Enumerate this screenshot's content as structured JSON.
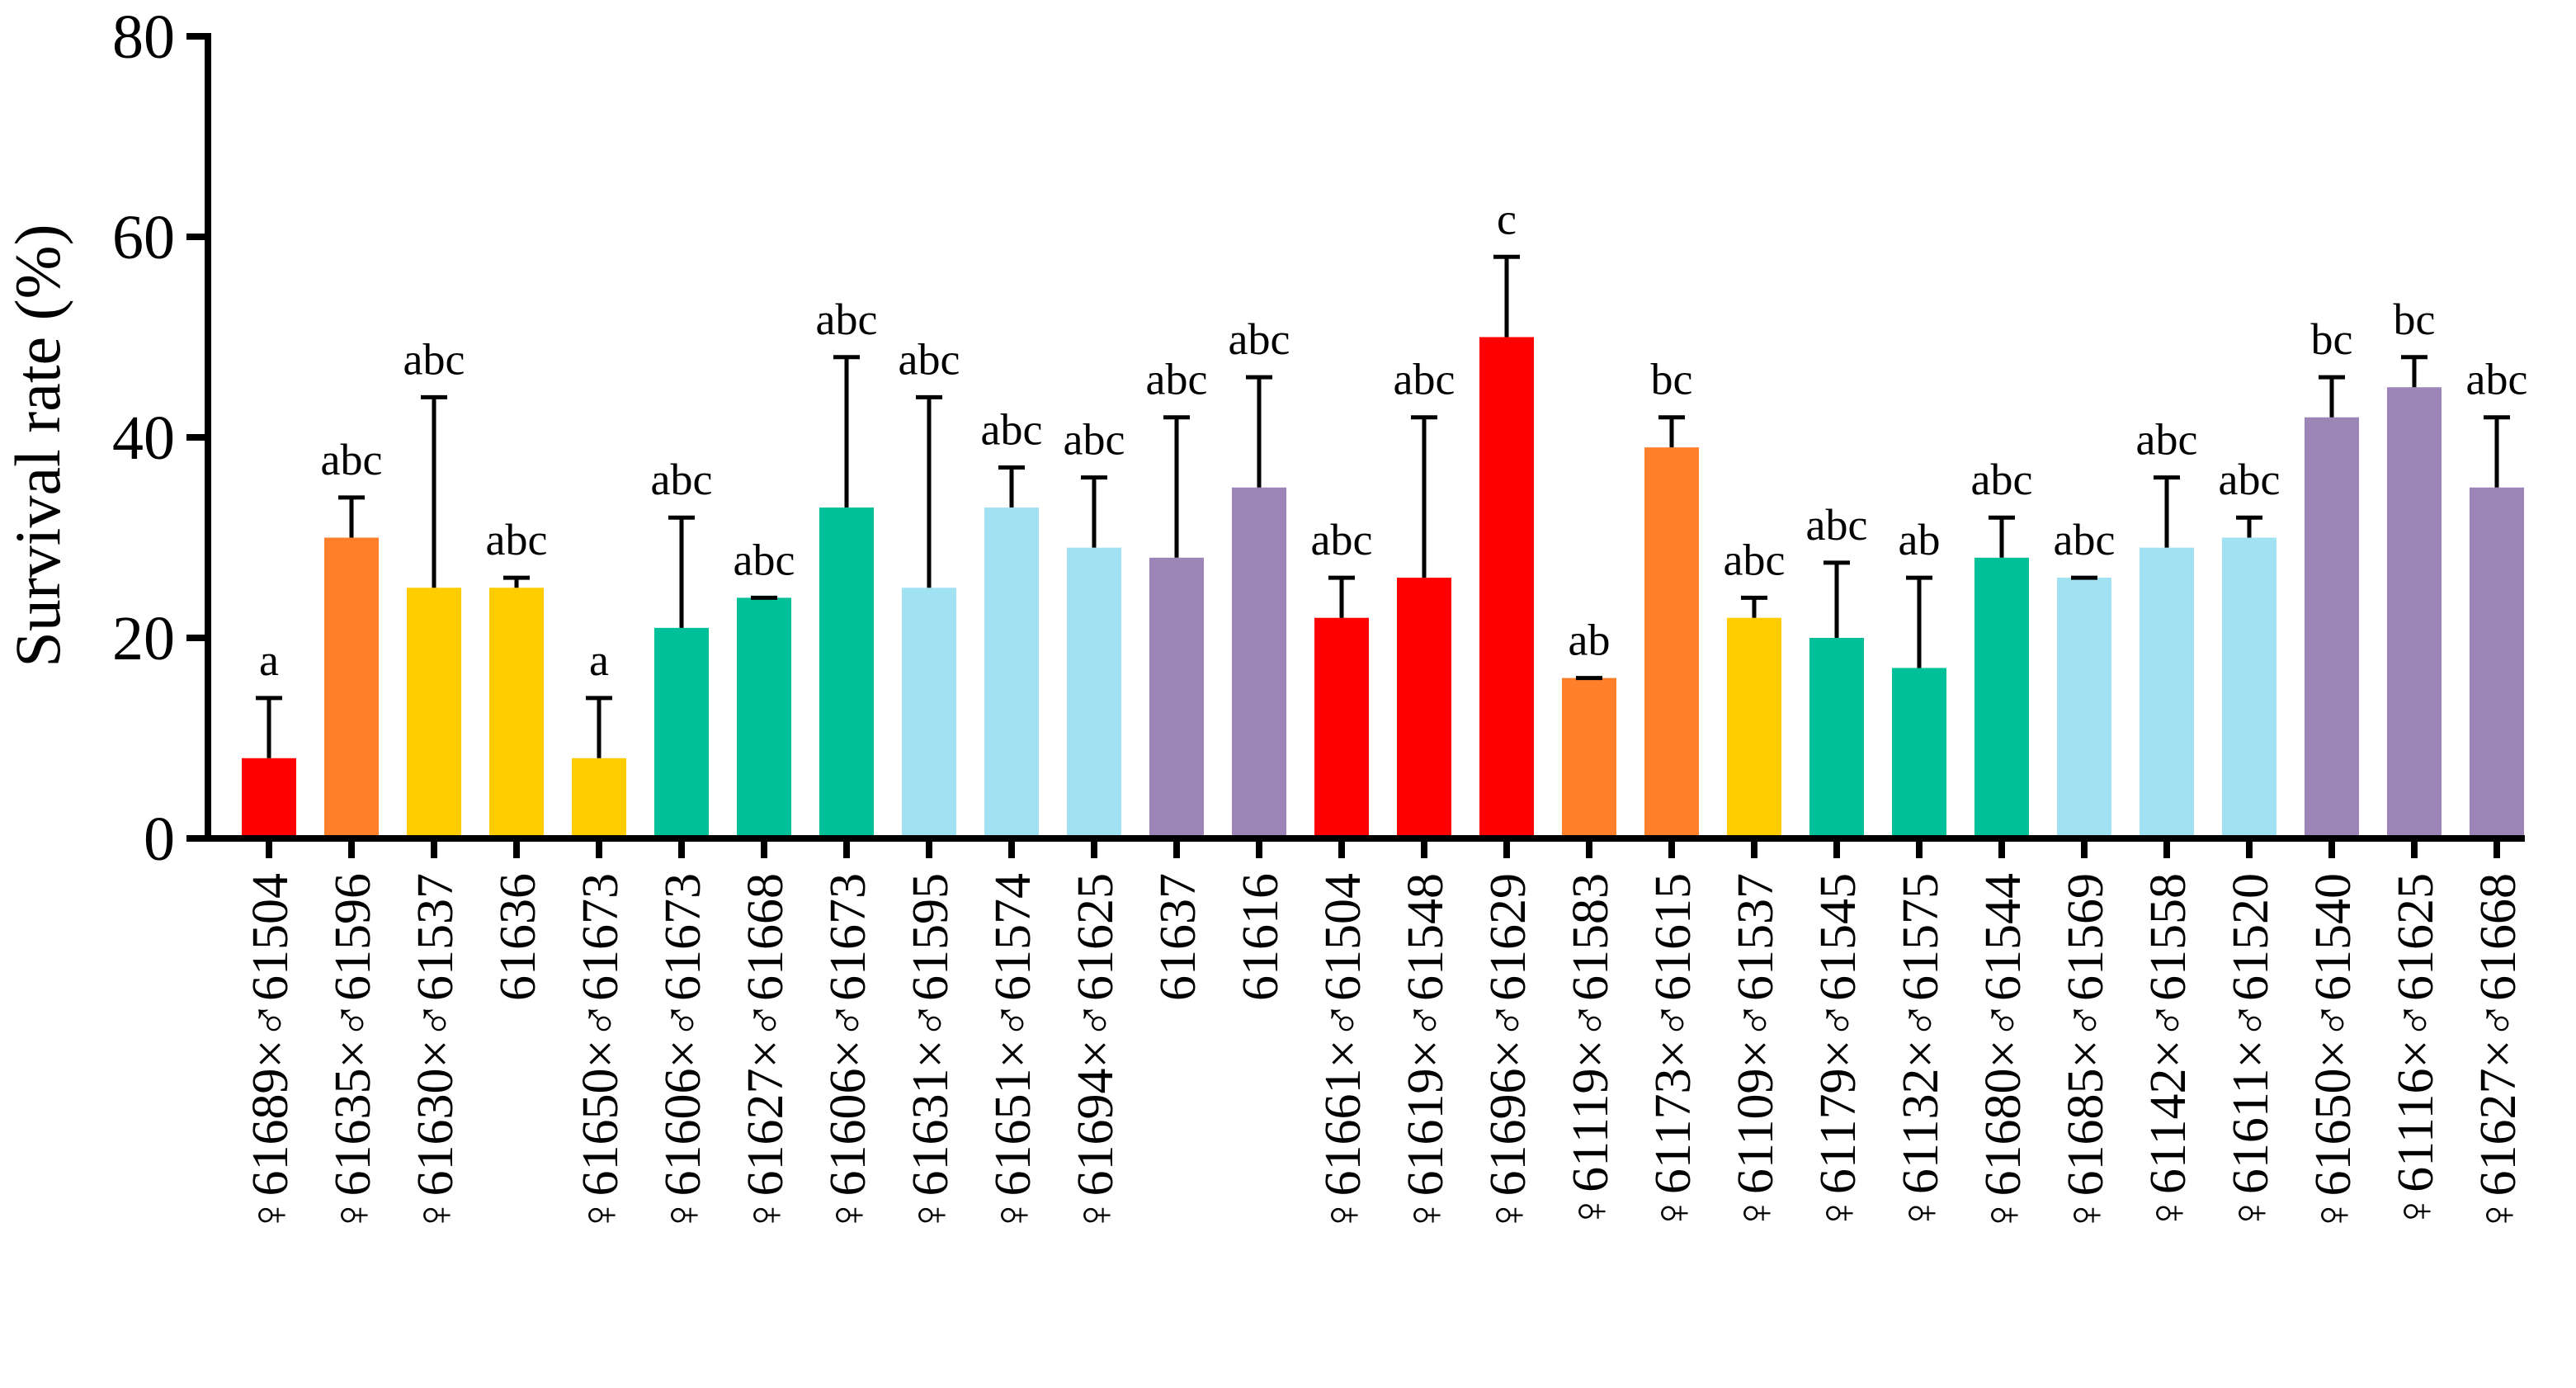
{
  "chart_data": {
    "type": "bar",
    "title": "",
    "xlabel": "",
    "ylabel": "Survival rate (%)",
    "ylim": [
      0,
      80
    ],
    "yticks": [
      0,
      20,
      40,
      60,
      80
    ],
    "grid": false,
    "legend": "none",
    "categories": [
      "♀61689×♂61504",
      "♀61635×♂61596",
      "♀61630×♂61537",
      "61636",
      "♀61650×♂61673",
      "♀61606×♂61673",
      "♀61627×♂61668",
      "♀61606×♂61673",
      "♀61631×♂61595",
      "♀61651×♂61574",
      "♀61694×♂61625",
      "61637",
      "61616",
      "♀61661×♂61504",
      "♀61619×♂61548",
      "♀61696×♂61629",
      "♀61119×♂61583",
      "♀61173×♂61615",
      "♀61109×♂61537",
      "♀61179×♂61545",
      "♀61132×♂61575",
      "♀61680×♂61544",
      "♀61685×♂61569",
      "♀61142×♂61558",
      "♀61611×♂61520",
      "♀61650×♂61540",
      "♀61116×♂61625",
      "♀61627×♂61668"
    ],
    "values": [
      8,
      30,
      25,
      25,
      8,
      21,
      24,
      33,
      25,
      33,
      29,
      28,
      35,
      22,
      26,
      50,
      16,
      39,
      22,
      20,
      17,
      28,
      26,
      29,
      30,
      42,
      45,
      35
    ],
    "error_upper": [
      14,
      34,
      44,
      26,
      14,
      32,
      24,
      48,
      44,
      37,
      36,
      42,
      46,
      26,
      42,
      58,
      16,
      42,
      24,
      27.5,
      26,
      32,
      26,
      36,
      32,
      46,
      48,
      42
    ],
    "significance": [
      "a",
      "abc",
      "abc",
      "abc",
      "a",
      "abc",
      "abc",
      "abc",
      "abc",
      "abc",
      "abc",
      "abc",
      "abc",
      "abc",
      "abc",
      "c",
      "ab",
      "bc",
      "abc",
      "abc",
      "ab",
      "abc",
      "abc",
      "abc",
      "abc",
      "bc",
      "bc",
      "abc"
    ],
    "bar_colors": [
      "#ff0000",
      "#ff7f2a",
      "#ffcc00",
      "#ffcc00",
      "#ffcc00",
      "#00c09a",
      "#00c09a",
      "#00c09a",
      "#a0e2f1",
      "#a0e2f1",
      "#a0e2f1",
      "#9b86b7",
      "#9b86b7",
      "#ff0000",
      "#ff0000",
      "#ff0000",
      "#ff7f2a",
      "#ff7f2a",
      "#ffcc00",
      "#00c09a",
      "#00c09a",
      "#00c09a",
      "#a0e2f1",
      "#a0e2f1",
      "#a0e2f1",
      "#9b86b7",
      "#9b86b7",
      "#9b86b7"
    ]
  }
}
